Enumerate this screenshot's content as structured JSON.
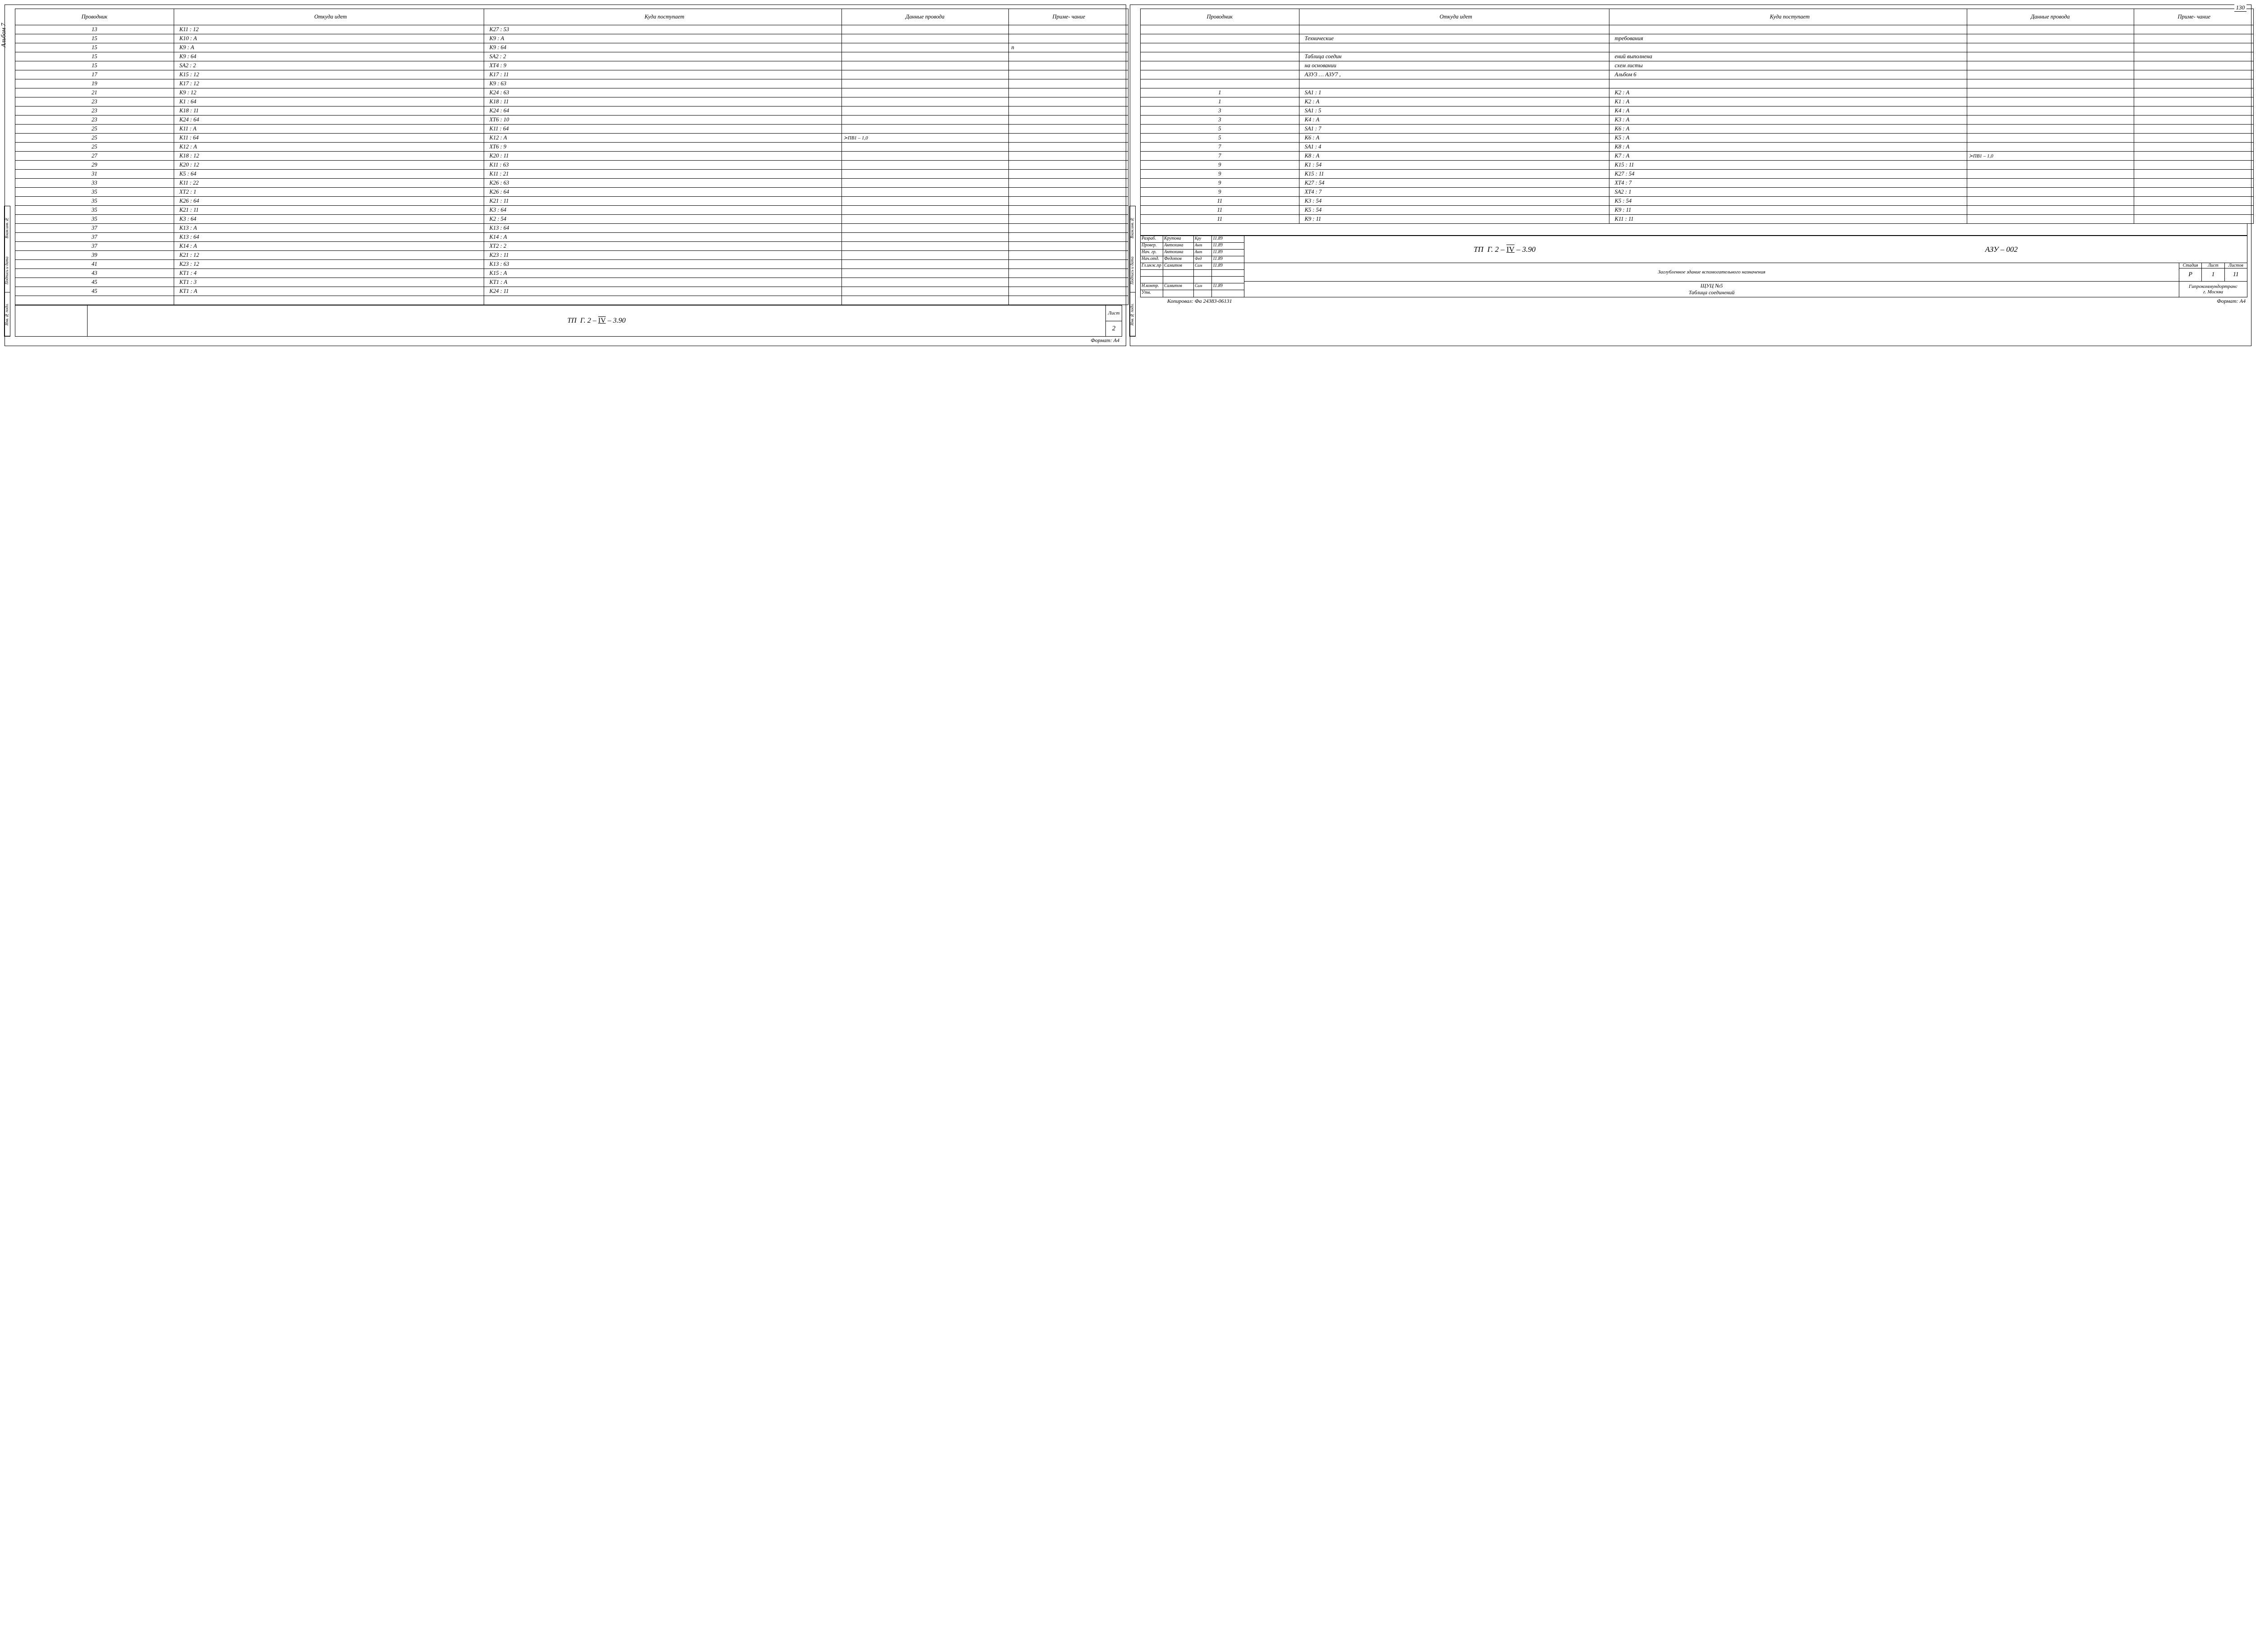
{
  "pageNumber": "130",
  "sideLabel": "Альбом 7",
  "stampCells": [
    "Взам.инв.№",
    "Подпись и дата",
    "Инв.№ подл."
  ],
  "columns": {
    "prov": "Проводник",
    "from": "Откуда идет",
    "to": "Куда поступает",
    "wire": "Данные провода",
    "note": "Приме-\nчание"
  },
  "leftRows": [
    {
      "p": "13",
      "f": "К11 : 12",
      "t": "К27 : 53",
      "w": "",
      "n": ""
    },
    {
      "p": "15",
      "f": "К10 : А",
      "t": "К9 : А",
      "w": "",
      "n": ""
    },
    {
      "p": "15",
      "f": "К9 : А",
      "t": "К9 : 64",
      "w": "",
      "n": "п"
    },
    {
      "p": "15",
      "f": "К9 : 64",
      "t": "SA2 : 2",
      "w": "",
      "n": ""
    },
    {
      "p": "15",
      "f": "SA2 : 2",
      "t": "ХТ4 : 9",
      "w": "",
      "n": ""
    },
    {
      "p": "17",
      "f": "К15 : 12",
      "t": "К17 : 11",
      "w": "",
      "n": ""
    },
    {
      "p": "19",
      "f": "К17 : 12",
      "t": "К9 : 63",
      "w": "",
      "n": ""
    },
    {
      "p": "21",
      "f": "К9 : 12",
      "t": "К24 : 63",
      "w": "",
      "n": ""
    },
    {
      "p": "23",
      "f": "К1 : 64",
      "t": "К18 : 11",
      "w": "",
      "n": ""
    },
    {
      "p": "23",
      "f": "К18 : 11",
      "t": "К24 : 64",
      "w": "",
      "n": ""
    },
    {
      "p": "23",
      "f": "К24 : 64",
      "t": "ХТ6 : 10",
      "w": "",
      "n": ""
    },
    {
      "p": "25",
      "f": "К11 : А",
      "t": "К11 : 64",
      "w": "",
      "n": ""
    },
    {
      "p": "25",
      "f": "К11 : 64",
      "t": "К12 : А",
      "w": "ПВ1 – 1,0",
      "n": "",
      "brace": true
    },
    {
      "p": "25",
      "f": "К12 : А",
      "t": "ХТ6 : 9",
      "w": "",
      "n": ""
    },
    {
      "p": "27",
      "f": "К18 : 12",
      "t": "К20 : 11",
      "w": "",
      "n": ""
    },
    {
      "p": "29",
      "f": "К20 : 12",
      "t": "К11 : 63",
      "w": "",
      "n": ""
    },
    {
      "p": "31",
      "f": "К5 : 64",
      "t": "К11 : 21",
      "w": "",
      "n": ""
    },
    {
      "p": "33",
      "f": "К11 : 22",
      "t": "К26 : 63",
      "w": "",
      "n": ""
    },
    {
      "p": "35",
      "f": "ХТ2 : 1",
      "t": "К26 : 64",
      "w": "",
      "n": ""
    },
    {
      "p": "35",
      "f": "К26 : 64",
      "t": "К21 : 11",
      "w": "",
      "n": ""
    },
    {
      "p": "35",
      "f": "К21 : 11",
      "t": "К3 : 64",
      "w": "",
      "n": ""
    },
    {
      "p": "35",
      "f": "К3 : 64",
      "t": "К2 : 54",
      "w": "",
      "n": ""
    },
    {
      "p": "37",
      "f": "К13 : А",
      "t": "К13 : 64",
      "w": "",
      "n": ""
    },
    {
      "p": "37",
      "f": "К13 : 64",
      "t": "К14 : А",
      "w": "",
      "n": ""
    },
    {
      "p": "37",
      "f": "К14 : А",
      "t": "ХТ2 : 2",
      "w": "",
      "n": ""
    },
    {
      "p": "39",
      "f": "К21 : 12",
      "t": "К23 : 11",
      "w": "",
      "n": ""
    },
    {
      "p": "41",
      "f": "К23 : 12",
      "t": "К13 : 63",
      "w": "",
      "n": ""
    },
    {
      "p": "43",
      "f": "КТ1 : 4",
      "t": "К15 : А",
      "w": "",
      "n": ""
    },
    {
      "p": "45",
      "f": "КТ1 : 3",
      "t": "КТ1 : А",
      "w": "",
      "n": ""
    },
    {
      "p": "45",
      "f": "КТ1 : А",
      "t": "К24 : 11",
      "w": "",
      "n": ""
    },
    {
      "p": "",
      "f": "",
      "t": "",
      "w": "",
      "n": ""
    }
  ],
  "leftBottom": {
    "title": "ТП  Г. 2 – IV – 3.90",
    "listLabel": "Лист",
    "listNum": "2",
    "footer": "Формат: А4"
  },
  "rightRows": [
    {
      "p": "",
      "f": "",
      "t": "",
      "w": "",
      "n": ""
    },
    {
      "p": "",
      "f": "Технические",
      "t": "требования",
      "w": "",
      "n": ""
    },
    {
      "p": "",
      "f": "",
      "t": "",
      "w": "",
      "n": ""
    },
    {
      "p": "",
      "f": "Таблица  соедин",
      "t": "ений  выполнена",
      "w": "",
      "n": ""
    },
    {
      "p": "",
      "f": "на  основании",
      "t": "схем  листы",
      "w": "",
      "n": ""
    },
    {
      "p": "",
      "f": "АЗУ3 … АЗУ7 ,",
      "t": "Альбом  6",
      "w": "",
      "n": ""
    },
    {
      "p": "",
      "f": "",
      "t": "",
      "w": "",
      "n": ""
    },
    {
      "p": "1",
      "f": "SA1 : 1",
      "t": "К2 : А",
      "w": "",
      "n": ""
    },
    {
      "p": "1",
      "f": "К2 : А",
      "t": "К1 : А",
      "w": "",
      "n": ""
    },
    {
      "p": "3",
      "f": "SA1 : 5",
      "t": "К4 : А",
      "w": "",
      "n": ""
    },
    {
      "p": "3",
      "f": "К4 : А",
      "t": "К3 : А",
      "w": "",
      "n": ""
    },
    {
      "p": "5",
      "f": "SA1 : 7",
      "t": "К6 : А",
      "w": "",
      "n": ""
    },
    {
      "p": "5",
      "f": "К6 : А",
      "t": "К5 : А",
      "w": "",
      "n": ""
    },
    {
      "p": "7",
      "f": "SA1 : 4",
      "t": "К8 : А",
      "w": "",
      "n": ""
    },
    {
      "p": "7",
      "f": "К8 : А",
      "t": "К7 : А",
      "w": "ПВ1 – 1,0",
      "n": "",
      "brace": true
    },
    {
      "p": "9",
      "f": "К1 : 54",
      "t": "К15 : 11",
      "w": "",
      "n": ""
    },
    {
      "p": "9",
      "f": "К15 : 11",
      "t": "К27 : 54",
      "w": "",
      "n": ""
    },
    {
      "p": "9",
      "f": "К27 : 54",
      "t": "ХТ4 : 7",
      "w": "",
      "n": ""
    },
    {
      "p": "9",
      "f": "ХТ4 : 7",
      "t": "SA2 : 1",
      "w": "",
      "n": ""
    },
    {
      "p": "11",
      "f": "К3 : 54",
      "t": "К5 : 54",
      "w": "",
      "n": ""
    },
    {
      "p": "11",
      "f": "К5 : 54",
      "t": "К9 : 11",
      "w": "",
      "n": ""
    },
    {
      "p": "11",
      "f": "К9 : 11",
      "t": "К11 : 11",
      "w": "",
      "n": ""
    }
  ],
  "titleBlock": {
    "roles": [
      {
        "role": "Разраб.",
        "name": "Крутова",
        "sign": "Кру",
        "date": "11.89"
      },
      {
        "role": "Провер.",
        "name": "Антохина",
        "sign": "Ант",
        "date": "11.89"
      },
      {
        "role": "Нач. гр.",
        "name": "Антохина",
        "sign": "Ант",
        "date": "11.89"
      },
      {
        "role": "Нач.отд.",
        "name": "Федотов",
        "sign": "Фед",
        "date": "11.89"
      },
      {
        "role": "Гл.инж.пр",
        "name": "Самитов",
        "sign": "Сам",
        "date": "11.89"
      },
      {
        "role": "",
        "name": "",
        "sign": "",
        "date": ""
      },
      {
        "role": "",
        "name": "",
        "sign": "",
        "date": ""
      },
      {
        "role": "Н.контр.",
        "name": "Самитов",
        "sign": "Сам",
        "date": "11.89"
      },
      {
        "role": "Утв.",
        "name": "",
        "sign": "",
        "date": ""
      }
    ],
    "projCode": "ТП  Г. 2 – IV – 3.90",
    "docCode": "АЗУ – 002",
    "building": "Заглубленное здание вспомогательного назначения",
    "stage": "Р",
    "sheet": "1",
    "sheets": "11",
    "object": "ЩУЦ №5\nТаблица соединений",
    "org": "Гипрокоммундортранс\nг. Москва",
    "slpHead": {
      "s": "Стадия",
      "l": "Лист",
      "ls": "Листов"
    }
  },
  "rightFooter": {
    "copy": "Копировал:  Фа   24383-06131",
    "fmt": "Формат: А4"
  }
}
